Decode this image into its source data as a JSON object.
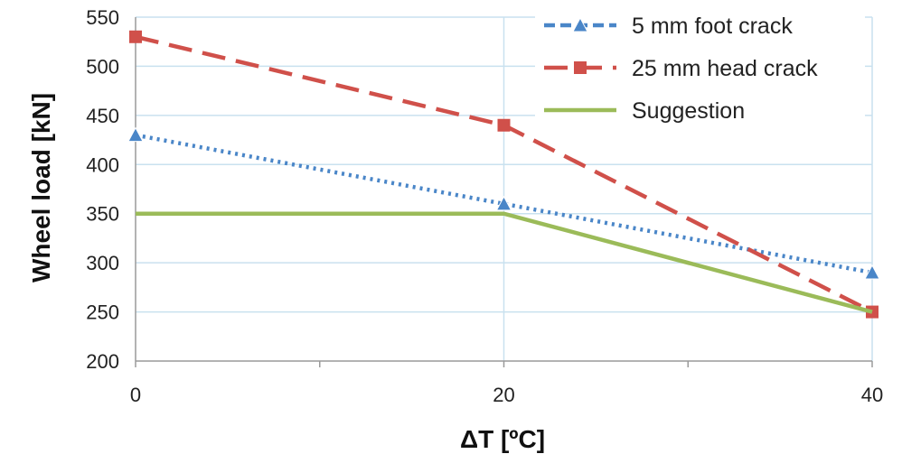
{
  "chart_data": {
    "type": "line",
    "xlabel": "ΔT [ºC]",
    "ylabel": "Wheel load  [kN]",
    "x_ticks": [
      "0",
      "20",
      "40"
    ],
    "y_ticks": [
      "200",
      "250",
      "300",
      "350",
      "400",
      "450",
      "500",
      "550"
    ],
    "xlim": [
      0,
      40
    ],
    "ylim": [
      200,
      550
    ],
    "grid": true,
    "legend_position": "top-right",
    "series": [
      {
        "name": "5 mm foot crack",
        "color": "#4a86c8",
        "line_style": "dotted",
        "marker": "triangle",
        "points": [
          {
            "x": 0,
            "y": 430
          },
          {
            "x": 20,
            "y": 360
          },
          {
            "x": 40,
            "y": 290
          }
        ]
      },
      {
        "name": "25 mm head crack",
        "color": "#d0504a",
        "line_style": "dashed",
        "marker": "square",
        "points": [
          {
            "x": 0,
            "y": 530
          },
          {
            "x": 20,
            "y": 440
          },
          {
            "x": 40,
            "y": 250
          }
        ]
      },
      {
        "name": "Suggestion",
        "color": "#9bbb59",
        "line_style": "solid",
        "marker": "none",
        "points": [
          {
            "x": 0,
            "y": 350
          },
          {
            "x": 20,
            "y": 350
          },
          {
            "x": 40,
            "y": 250
          }
        ]
      }
    ]
  }
}
